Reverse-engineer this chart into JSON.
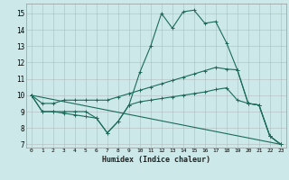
{
  "xlabel": "Humidex (Indice chaleur)",
  "bg_color": "#cce8e8",
  "grid_color": "#b0b0b0",
  "line_color": "#1a6b5a",
  "xlim": [
    -0.5,
    23.5
  ],
  "ylim": [
    6.8,
    15.6
  ],
  "xticks": [
    0,
    1,
    2,
    3,
    4,
    5,
    6,
    7,
    8,
    9,
    10,
    11,
    12,
    13,
    14,
    15,
    16,
    17,
    18,
    19,
    20,
    21,
    22,
    23
  ],
  "yticks": [
    7,
    8,
    9,
    10,
    11,
    12,
    13,
    14,
    15
  ],
  "line1_y": [
    10,
    9,
    9,
    9,
    9,
    9,
    8.6,
    7.7,
    8.4,
    9.4,
    11.4,
    13.0,
    15.0,
    14.1,
    15.1,
    15.2,
    14.4,
    14.5,
    13.2,
    11.55,
    9.5,
    9.4,
    7.5,
    7.0
  ],
  "line2_y": [
    10,
    9.5,
    9.5,
    9.7,
    9.7,
    9.7,
    9.7,
    9.7,
    9.9,
    10.1,
    10.3,
    10.5,
    10.7,
    10.9,
    11.1,
    11.3,
    11.5,
    11.7,
    11.6,
    11.55,
    9.5,
    9.4,
    7.5,
    7.0
  ],
  "line3_x": [
    0,
    23
  ],
  "line3_y": [
    10,
    7.0
  ],
  "line4_y": [
    10,
    9,
    9,
    8.9,
    8.8,
    8.7,
    8.6,
    7.7,
    8.4,
    9.4,
    9.6,
    9.7,
    9.8,
    9.9,
    10.0,
    10.1,
    10.2,
    10.35,
    10.45,
    9.7,
    9.5,
    9.4,
    7.5,
    7.0
  ]
}
